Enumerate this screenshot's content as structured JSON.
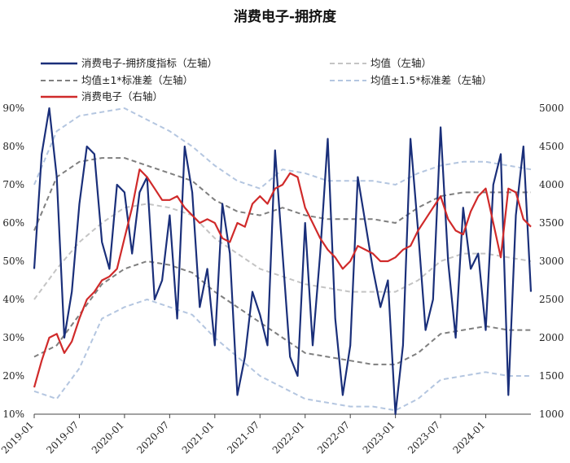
{
  "chart_data": {
    "type": "line",
    "title": "消费电子-拥挤度",
    "x_ticks": [
      "2019-01",
      "2019-07",
      "2020-01",
      "2020-07",
      "2021-01",
      "2021-07",
      "2022-01",
      "2022-07",
      "2023-01",
      "2023-07",
      "2024-01"
    ],
    "x_range": [
      "2019-01",
      "2024-07"
    ],
    "left_axis": {
      "ticks": [
        "90%",
        "80%",
        "70%",
        "60%",
        "50%",
        "40%",
        "30%",
        "20%",
        "10%"
      ],
      "ylim": [
        10,
        90
      ]
    },
    "right_axis": {
      "ticks": [
        "5000",
        "4500",
        "4000",
        "3500",
        "3000",
        "2500",
        "2000",
        "1500",
        "1000"
      ],
      "ylim": [
        1000,
        5000
      ]
    },
    "legend": {
      "crowding": "消费电子-拥挤度指标（左轴）",
      "mean": "均值（左轴）",
      "band1": "均值±1*标准差（左轴）",
      "band15": "均值±1.5*标准差（左轴）",
      "index": "消费电子（右轴）"
    },
    "colors": {
      "crowding": "#1a2f7a",
      "mean": "#c4c4c4",
      "band1": "#7f7f7f",
      "band15": "#b4c6e0",
      "index": "#d02a2a"
    },
    "series": [
      {
        "key": "crowding",
        "axis": "left",
        "x": [
          "2019-01",
          "2019-02",
          "2019-03",
          "2019-04",
          "2019-05",
          "2019-06",
          "2019-07",
          "2019-08",
          "2019-09",
          "2019-10",
          "2019-11",
          "2019-12",
          "2020-01",
          "2020-02",
          "2020-03",
          "2020-04",
          "2020-05",
          "2020-06",
          "2020-07",
          "2020-08",
          "2020-09",
          "2020-10",
          "2020-11",
          "2020-12",
          "2021-01",
          "2021-02",
          "2021-03",
          "2021-04",
          "2021-05",
          "2021-06",
          "2021-07",
          "2021-08",
          "2021-09",
          "2021-10",
          "2021-11",
          "2021-12",
          "2022-01",
          "2022-02",
          "2022-03",
          "2022-04",
          "2022-05",
          "2022-06",
          "2022-07",
          "2022-08",
          "2022-09",
          "2022-10",
          "2022-11",
          "2022-12",
          "2023-01",
          "2023-02",
          "2023-03",
          "2023-04",
          "2023-05",
          "2023-06",
          "2023-07",
          "2023-08",
          "2023-09",
          "2023-10",
          "2023-11",
          "2023-12",
          "2024-01",
          "2024-02",
          "2024-03",
          "2024-04",
          "2024-05",
          "2024-06",
          "2024-07"
        ],
        "values": [
          48,
          78,
          90,
          72,
          30,
          42,
          65,
          80,
          78,
          55,
          48,
          70,
          68,
          52,
          68,
          72,
          40,
          45,
          62,
          35,
          80,
          68,
          38,
          48,
          28,
          65,
          52,
          15,
          25,
          42,
          36,
          28,
          79,
          52,
          25,
          20,
          60,
          28,
          52,
          82,
          35,
          15,
          28,
          72,
          60,
          48,
          38,
          45,
          10,
          28,
          82,
          58,
          32,
          40,
          85,
          50,
          30,
          64,
          48,
          52,
          32,
          70,
          78,
          15,
          62,
          80,
          42
        ]
      },
      {
        "key": "mean",
        "axis": "left",
        "x": [
          "2019-01",
          "2019-04",
          "2019-07",
          "2019-10",
          "2020-01",
          "2020-04",
          "2020-07",
          "2020-10",
          "2021-01",
          "2021-04",
          "2021-07",
          "2021-10",
          "2022-01",
          "2022-04",
          "2022-07",
          "2022-10",
          "2023-01",
          "2023-04",
          "2023-07",
          "2023-10",
          "2024-01",
          "2024-04",
          "2024-07"
        ],
        "values": [
          40,
          48,
          55,
          60,
          64,
          65,
          64,
          62,
          56,
          52,
          48,
          46,
          44,
          43,
          42,
          42,
          42,
          45,
          50,
          52,
          52,
          51,
          50
        ]
      },
      {
        "key": "band1_upper",
        "axis": "left",
        "x": [
          "2019-01",
          "2019-04",
          "2019-07",
          "2019-10",
          "2020-01",
          "2020-04",
          "2020-07",
          "2020-10",
          "2021-01",
          "2021-04",
          "2021-07",
          "2021-10",
          "2022-01",
          "2022-04",
          "2022-07",
          "2022-10",
          "2023-01",
          "2023-04",
          "2023-07",
          "2023-10",
          "2024-01",
          "2024-04",
          "2024-07"
        ],
        "values": [
          58,
          72,
          76,
          77,
          77,
          75,
          73,
          71,
          66,
          63,
          62,
          64,
          62,
          61,
          61,
          61,
          60,
          64,
          67,
          68,
          68,
          68,
          68
        ]
      },
      {
        "key": "band1_lower",
        "axis": "left",
        "x": [
          "2019-01",
          "2019-04",
          "2019-07",
          "2019-10",
          "2020-01",
          "2020-04",
          "2020-07",
          "2020-10",
          "2021-01",
          "2021-04",
          "2021-07",
          "2021-10",
          "2022-01",
          "2022-04",
          "2022-07",
          "2022-10",
          "2023-01",
          "2023-04",
          "2023-07",
          "2023-10",
          "2024-01",
          "2024-04",
          "2024-07"
        ],
        "values": [
          25,
          28,
          36,
          44,
          48,
          50,
          49,
          47,
          42,
          38,
          34,
          30,
          26,
          25,
          24,
          23,
          23,
          26,
          31,
          32,
          33,
          32,
          32
        ]
      },
      {
        "key": "band15_upper",
        "axis": "left",
        "x": [
          "2019-01",
          "2019-04",
          "2019-07",
          "2019-10",
          "2020-01",
          "2020-04",
          "2020-07",
          "2020-10",
          "2021-01",
          "2021-04",
          "2021-07",
          "2021-10",
          "2022-01",
          "2022-04",
          "2022-07",
          "2022-10",
          "2023-01",
          "2023-04",
          "2023-07",
          "2023-10",
          "2024-01",
          "2024-04",
          "2024-07"
        ],
        "values": [
          70,
          84,
          88,
          89,
          90,
          87,
          84,
          80,
          75,
          71,
          69,
          74,
          73,
          71,
          71,
          71,
          70,
          73,
          75,
          76,
          76,
          75,
          74
        ]
      },
      {
        "key": "band15_lower",
        "axis": "left",
        "x": [
          "2019-01",
          "2019-04",
          "2019-07",
          "2019-10",
          "2020-01",
          "2020-04",
          "2020-07",
          "2020-10",
          "2021-01",
          "2021-04",
          "2021-07",
          "2021-10",
          "2022-01",
          "2022-04",
          "2022-07",
          "2022-10",
          "2023-01",
          "2023-04",
          "2023-07",
          "2023-10",
          "2024-01",
          "2024-04",
          "2024-07"
        ],
        "values": [
          16,
          14,
          22,
          35,
          38,
          40,
          38,
          36,
          30,
          25,
          20,
          17,
          14,
          13,
          12,
          12,
          11,
          14,
          19,
          20,
          21,
          20,
          20
        ]
      },
      {
        "key": "index",
        "axis": "right",
        "x": [
          "2019-01",
          "2019-02",
          "2019-03",
          "2019-04",
          "2019-05",
          "2019-06",
          "2019-07",
          "2019-08",
          "2019-09",
          "2019-10",
          "2019-11",
          "2019-12",
          "2020-01",
          "2020-02",
          "2020-03",
          "2020-04",
          "2020-05",
          "2020-06",
          "2020-07",
          "2020-08",
          "2020-09",
          "2020-10",
          "2020-11",
          "2020-12",
          "2021-01",
          "2021-02",
          "2021-03",
          "2021-04",
          "2021-05",
          "2021-06",
          "2021-07",
          "2021-08",
          "2021-09",
          "2021-10",
          "2021-11",
          "2021-12",
          "2022-01",
          "2022-02",
          "2022-03",
          "2022-04",
          "2022-05",
          "2022-06",
          "2022-07",
          "2022-08",
          "2022-09",
          "2022-10",
          "2022-11",
          "2022-12",
          "2023-01",
          "2023-02",
          "2023-03",
          "2023-04",
          "2023-05",
          "2023-06",
          "2023-07",
          "2023-08",
          "2023-09",
          "2023-10",
          "2023-11",
          "2023-12",
          "2024-01",
          "2024-02",
          "2024-03",
          "2024-04",
          "2024-05",
          "2024-06",
          "2024-07"
        ],
        "values": [
          1350,
          1700,
          2000,
          2050,
          1800,
          1950,
          2250,
          2500,
          2600,
          2750,
          2800,
          2900,
          3300,
          3700,
          4200,
          4100,
          3950,
          3800,
          3800,
          3850,
          3700,
          3600,
          3500,
          3550,
          3500,
          3300,
          3250,
          3500,
          3450,
          3750,
          3850,
          3750,
          3950,
          4000,
          4150,
          4100,
          3700,
          3500,
          3300,
          3150,
          3050,
          2900,
          3000,
          3200,
          3150,
          3100,
          3000,
          3000,
          3050,
          3150,
          3200,
          3400,
          3550,
          3700,
          3850,
          3550,
          3400,
          3350,
          3650,
          3850,
          3950,
          3500,
          3050,
          3950,
          3900,
          3550,
          3450
        ]
      }
    ]
  }
}
